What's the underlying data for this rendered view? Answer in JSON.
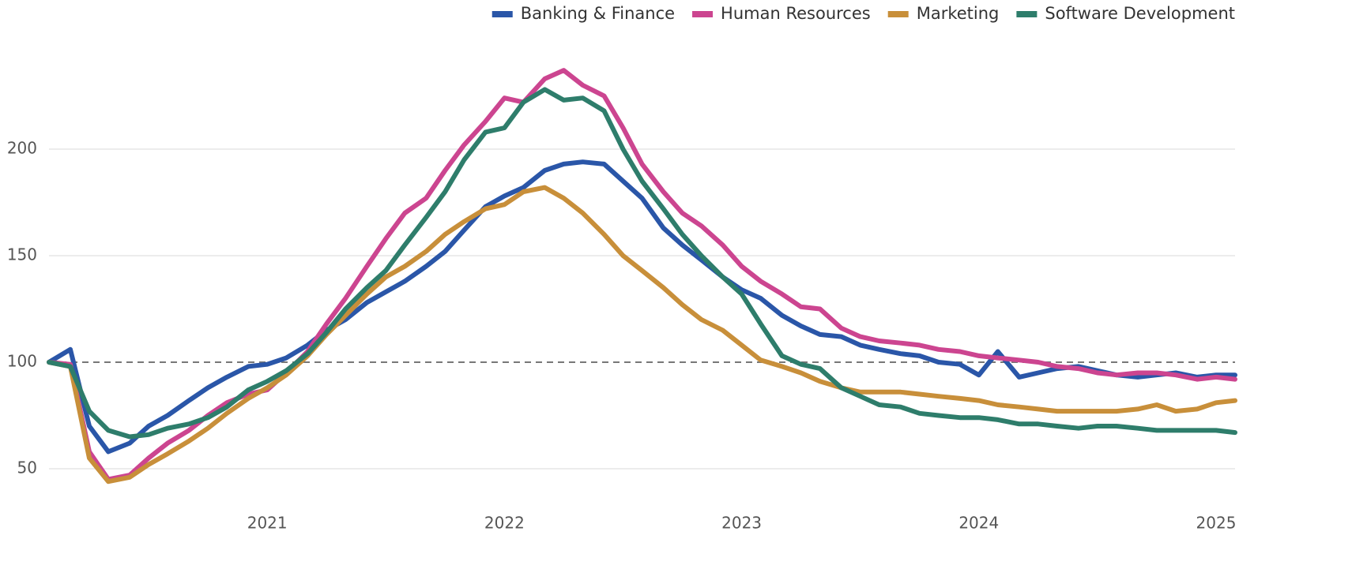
{
  "chart_data": {
    "type": "line",
    "x": [
      2020.08,
      2020.17,
      2020.25,
      2020.33,
      2020.42,
      2020.5,
      2020.58,
      2020.67,
      2020.75,
      2020.83,
      2020.92,
      2021,
      2021.08,
      2021.17,
      2021.25,
      2021.33,
      2021.42,
      2021.5,
      2021.58,
      2021.67,
      2021.75,
      2021.83,
      2021.92,
      2022,
      2022.08,
      2022.17,
      2022.25,
      2022.33,
      2022.42,
      2022.5,
      2022.58,
      2022.67,
      2022.75,
      2022.83,
      2022.92,
      2023,
      2023.08,
      2023.17,
      2023.25,
      2023.33,
      2023.42,
      2023.5,
      2023.58,
      2023.67,
      2023.75,
      2023.83,
      2023.92,
      2024,
      2024.08,
      2024.17,
      2024.25,
      2024.33,
      2024.42,
      2024.5,
      2024.58,
      2024.67,
      2024.75,
      2024.83,
      2024.92,
      2025,
      2025.08
    ],
    "series": [
      {
        "name": "Banking & Finance",
        "color": "#2a56a8",
        "values": [
          100,
          106,
          70,
          58,
          62,
          70,
          75,
          82,
          88,
          93,
          98,
          99,
          102,
          108,
          115,
          120,
          128,
          133,
          138,
          145,
          152,
          162,
          173,
          178,
          182,
          190,
          193,
          194,
          193,
          185,
          177,
          163,
          155,
          148,
          140,
          134,
          130,
          122,
          117,
          113,
          112,
          108,
          106,
          104,
          103,
          100,
          99,
          94,
          105,
          93,
          95,
          97,
          98,
          96,
          94,
          93,
          94,
          95,
          93,
          94,
          94
        ]
      },
      {
        "name": "Human Resources",
        "color": "#cc4590",
        "values": [
          100,
          99,
          58,
          45,
          47,
          55,
          62,
          68,
          75,
          81,
          85,
          87,
          95,
          105,
          118,
          130,
          145,
          158,
          170,
          177,
          190,
          202,
          213,
          224,
          222,
          233,
          237,
          230,
          225,
          210,
          193,
          180,
          170,
          164,
          155,
          145,
          138,
          132,
          126,
          125,
          116,
          112,
          110,
          109,
          108,
          106,
          105,
          103,
          102,
          101,
          100,
          98,
          97,
          95,
          94,
          95,
          95,
          94,
          92,
          93,
          92
        ]
      },
      {
        "name": "Marketing",
        "color": "#c88f3a",
        "values": [
          100,
          98,
          55,
          44,
          46,
          52,
          57,
          63,
          69,
          76,
          83,
          88,
          94,
          103,
          113,
          122,
          132,
          140,
          145,
          152,
          160,
          166,
          172,
          174,
          180,
          182,
          177,
          170,
          160,
          150,
          143,
          135,
          127,
          120,
          115,
          108,
          101,
          98,
          95,
          91,
          88,
          86,
          86,
          86,
          85,
          84,
          83,
          82,
          80,
          79,
          78,
          77,
          77,
          77,
          77,
          78,
          80,
          77,
          78,
          81,
          82
        ]
      },
      {
        "name": "Software Development",
        "color": "#2e7d6b",
        "values": [
          100,
          98,
          77,
          68,
          65,
          66,
          69,
          71,
          74,
          79,
          87,
          91,
          96,
          104,
          114,
          125,
          135,
          143,
          155,
          168,
          180,
          195,
          208,
          210,
          222,
          228,
          223,
          224,
          218,
          200,
          185,
          172,
          160,
          150,
          140,
          132,
          118,
          103,
          99,
          97,
          88,
          84,
          80,
          79,
          76,
          75,
          74,
          74,
          73,
          71,
          71,
          70,
          69,
          70,
          70,
          69,
          68,
          68,
          68,
          68,
          67
        ]
      }
    ],
    "xlim": [
      2020.08,
      2025.08
    ],
    "xticks": [
      2021,
      2022,
      2023,
      2024,
      2025
    ],
    "ylim": [
      35,
      250
    ],
    "yticks": [
      50,
      100,
      150,
      200
    ],
    "baseline": 100,
    "grid": true,
    "legend": "top-right"
  }
}
